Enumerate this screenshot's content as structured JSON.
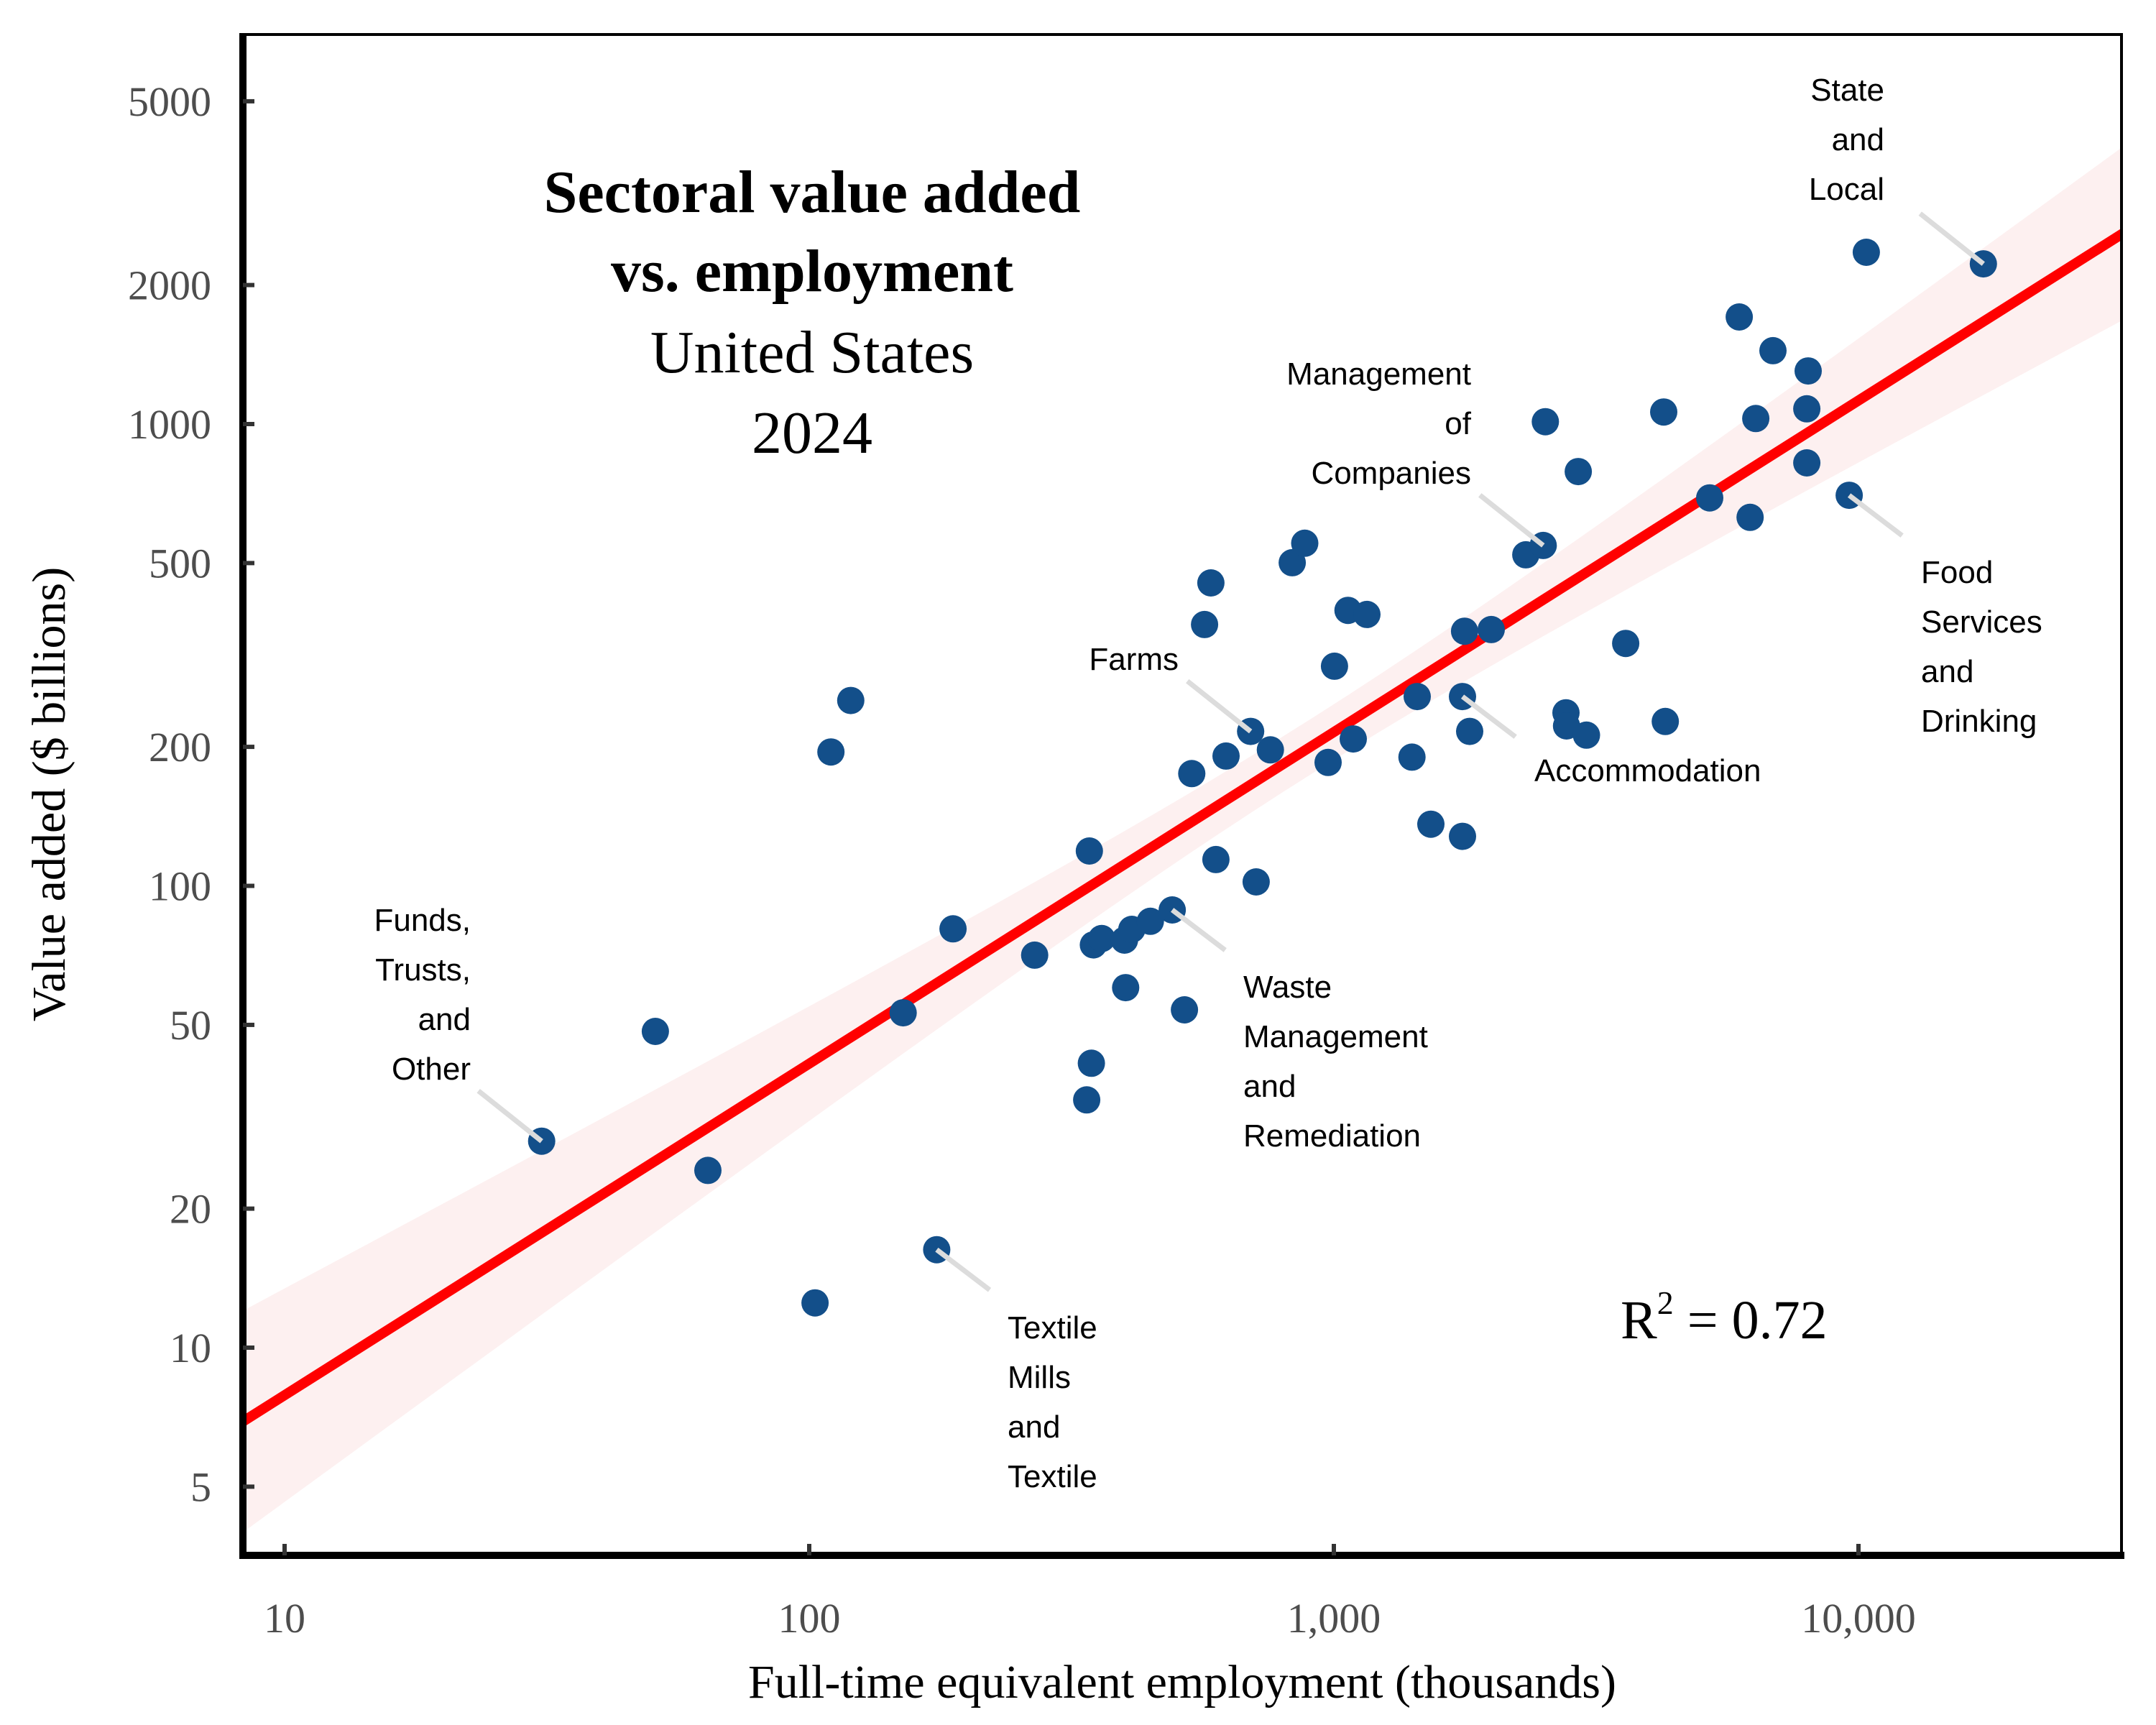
{
  "chart_data": {
    "type": "scatter",
    "title": "Sectoral value added vs. employment",
    "title_lines": [
      "Sectoral value added",
      "vs. employment"
    ],
    "subtitle_lines": [
      "United States",
      "2024"
    ],
    "xlabel": "Full-time equivalent employment (thousands)",
    "ylabel": "Value added ($ billions)",
    "xscale": "log",
    "yscale": "log",
    "xlim": [
      8.3,
      36000
    ],
    "ylim": [
      3.6,
      7000
    ],
    "xticks": [
      {
        "value": 10,
        "label": "10"
      },
      {
        "value": 100,
        "label": "100"
      },
      {
        "value": 1000,
        "label": "1,000"
      },
      {
        "value": 10000,
        "label": "10,000"
      }
    ],
    "yticks": [
      {
        "value": 5,
        "label": "5"
      },
      {
        "value": 10,
        "label": "10"
      },
      {
        "value": 20,
        "label": "20"
      },
      {
        "value": 50,
        "label": "50"
      },
      {
        "value": 100,
        "label": "100"
      },
      {
        "value": 200,
        "label": "200"
      },
      {
        "value": 500,
        "label": "500"
      },
      {
        "value": 1000,
        "label": "1000"
      },
      {
        "value": 2000,
        "label": "2000"
      },
      {
        "value": 5000,
        "label": "5000"
      }
    ],
    "grid": false,
    "legend": "none",
    "colors": {
      "points": "#134f8a",
      "fit_line": "#ff0000",
      "confidence_band": "#fdf0f0",
      "connector": "#dcdcdc",
      "axis": "#000000",
      "tick_text": "#4d4d4d"
    },
    "fit": {
      "model": "log10(y) = a + b*log10(x)",
      "intercept_log10": 0.179,
      "slope": 0.718,
      "r_squared": 0.72,
      "r_squared_label": {
        "base": "R",
        "sup": "2",
        "rest": " = 0.72"
      }
    },
    "points": [
      {
        "x": 30.9,
        "y": 28.0,
        "label": "Funds, Trusts, and Other"
      },
      {
        "x": 50.9,
        "y": 48.4
      },
      {
        "x": 64.1,
        "y": 24.2
      },
      {
        "x": 102.6,
        "y": 12.5
      },
      {
        "x": 110,
        "y": 195
      },
      {
        "x": 120,
        "y": 252
      },
      {
        "x": 151,
        "y": 53.1
      },
      {
        "x": 175,
        "y": 16.3,
        "label": "Textile Mills and Textile"
      },
      {
        "x": 188,
        "y": 80.7
      },
      {
        "x": 269,
        "y": 70.8
      },
      {
        "x": 338,
        "y": 34.4
      },
      {
        "x": 345,
        "y": 41.3
      },
      {
        "x": 342,
        "y": 119
      },
      {
        "x": 348,
        "y": 74.5
      },
      {
        "x": 361,
        "y": 76.9
      },
      {
        "x": 399,
        "y": 76.3
      },
      {
        "x": 401,
        "y": 60.2
      },
      {
        "x": 412,
        "y": 80.5
      },
      {
        "x": 447,
        "y": 83.8
      },
      {
        "x": 492,
        "y": 88.7,
        "label": "Waste Management and Remediation"
      },
      {
        "x": 519,
        "y": 53.9
      },
      {
        "x": 536,
        "y": 175
      },
      {
        "x": 567,
        "y": 368
      },
      {
        "x": 583,
        "y": 453
      },
      {
        "x": 596,
        "y": 114
      },
      {
        "x": 623,
        "y": 191
      },
      {
        "x": 694,
        "y": 216,
        "label": "Farms"
      },
      {
        "x": 711,
        "y": 102
      },
      {
        "x": 757,
        "y": 197
      },
      {
        "x": 833,
        "y": 501
      },
      {
        "x": 880,
        "y": 552
      },
      {
        "x": 975,
        "y": 185
      },
      {
        "x": 1003,
        "y": 299
      },
      {
        "x": 1064,
        "y": 395
      },
      {
        "x": 1089,
        "y": 208
      },
      {
        "x": 1156,
        "y": 387
      },
      {
        "x": 1409,
        "y": 190
      },
      {
        "x": 1442,
        "y": 257
      },
      {
        "x": 1531,
        "y": 136
      },
      {
        "x": 1759,
        "y": 128
      },
      {
        "x": 1759,
        "y": 257,
        "label": "Accommodation"
      },
      {
        "x": 1775,
        "y": 356
      },
      {
        "x": 1815,
        "y": 216
      },
      {
        "x": 1995,
        "y": 359
      },
      {
        "x": 2322,
        "y": 521
      },
      {
        "x": 2506,
        "y": 546,
        "label": "Management of Companies"
      },
      {
        "x": 2530,
        "y": 1012
      },
      {
        "x": 2770,
        "y": 237
      },
      {
        "x": 2777,
        "y": 222
      },
      {
        "x": 2923,
        "y": 789
      },
      {
        "x": 3030,
        "y": 212
      },
      {
        "x": 3600,
        "y": 335
      },
      {
        "x": 4254,
        "y": 1062
      },
      {
        "x": 4283,
        "y": 227
      },
      {
        "x": 5205,
        "y": 692
      },
      {
        "x": 5925,
        "y": 1706
      },
      {
        "x": 6215,
        "y": 628
      },
      {
        "x": 6372,
        "y": 1028
      },
      {
        "x": 6870,
        "y": 1442
      },
      {
        "x": 7970,
        "y": 1079
      },
      {
        "x": 7970,
        "y": 824
      },
      {
        "x": 8020,
        "y": 1303
      },
      {
        "x": 9600,
        "y": 701,
        "label": "Food Services and Drinking"
      },
      {
        "x": 10350,
        "y": 2355
      },
      {
        "x": 17300,
        "y": 2223,
        "label": "State and Local"
      }
    ],
    "annotations": [
      {
        "text_lines": [
          "Funds,",
          "Trusts,",
          "and",
          "Other"
        ],
        "point": {
          "x": 30.9,
          "y": 28.0
        },
        "anchor": "end",
        "side": "upper-left"
      },
      {
        "text_lines": [
          "Textile",
          "Mills",
          "and",
          "Textile"
        ],
        "point": {
          "x": 175,
          "y": 16.3
        },
        "anchor": "start",
        "side": "lower-right"
      },
      {
        "text_lines": [
          "Waste",
          "Management",
          "and",
          "Remediation"
        ],
        "point": {
          "x": 492,
          "y": 88.7
        },
        "anchor": "start",
        "side": "lower-right"
      },
      {
        "text_lines": [
          "Farms"
        ],
        "point": {
          "x": 694,
          "y": 216
        },
        "anchor": "end",
        "side": "upper-left"
      },
      {
        "text_lines": [
          "Accommodation"
        ],
        "point": {
          "x": 1759,
          "y": 257
        },
        "anchor": "start",
        "side": "lower-right"
      },
      {
        "text_lines": [
          "Management",
          "of",
          "Companies"
        ],
        "point": {
          "x": 2506,
          "y": 546
        },
        "anchor": "end",
        "side": "upper-left"
      },
      {
        "text_lines": [
          "Food",
          "Services",
          "and",
          "Drinking"
        ],
        "point": {
          "x": 9600,
          "y": 701
        },
        "anchor": "start",
        "side": "lower-right"
      },
      {
        "text_lines": [
          "State",
          "and",
          "Local"
        ],
        "point": {
          "x": 17300,
          "y": 2223
        },
        "anchor": "end",
        "side": "upper-left"
      }
    ]
  }
}
